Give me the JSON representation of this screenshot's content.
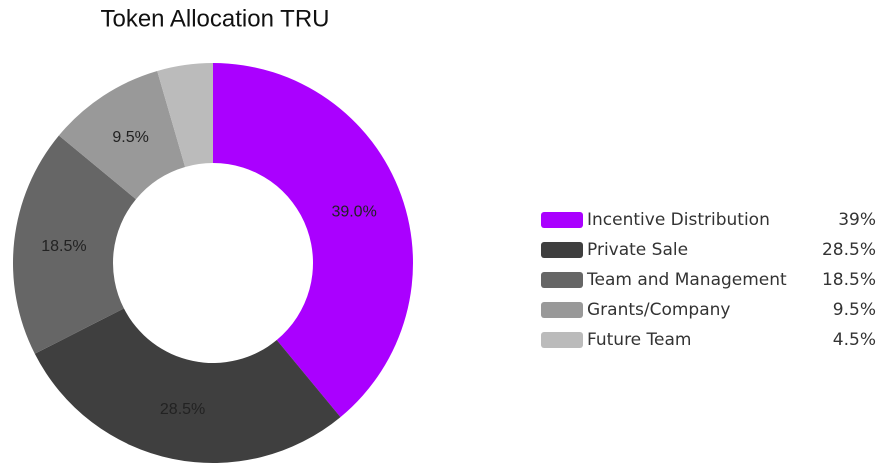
{
  "chart_data": {
    "type": "donut",
    "title": "Token Allocation TRU",
    "categories": [
      "Incentive Distribution",
      "Private Sale",
      "Team and Management",
      "Grants/Company",
      "Future Team"
    ],
    "values": [
      39,
      28.5,
      18.5,
      9.5,
      4.5
    ],
    "value_labels": [
      "39.0%",
      "28.5%",
      "18.5%",
      "9.5%",
      null
    ],
    "legend_labels": [
      "39%",
      "28.5%",
      "18.5%",
      "9.5%",
      "4.5%"
    ],
    "colors": [
      "#aa00ff",
      "#3f3f3f",
      "#666666",
      "#999999",
      "#bbbbbb"
    ]
  }
}
